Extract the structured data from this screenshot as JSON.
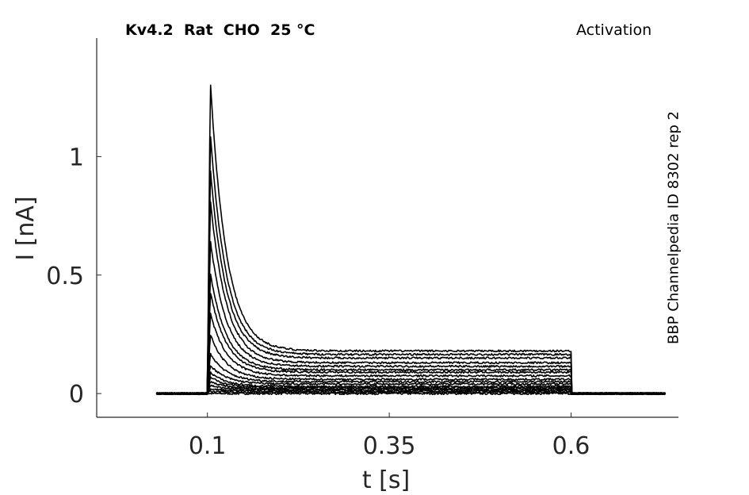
{
  "header": {
    "title": "Kv4.2  Rat  CHO  25 °C",
    "protocol": "Activation"
  },
  "side_label": "BBP Channelpedia ID 8302 rep 2",
  "chart_data": {
    "type": "line",
    "title": "Kv4.2  Rat  CHO  25 °C",
    "xlabel": "t [s]",
    "ylabel": "I [nA]",
    "xlim": [
      -0.0522,
      0.7476
    ],
    "ylim": [
      -0.1,
      1.5
    ],
    "xticks": [
      0.1,
      0.35,
      0.6
    ],
    "xtick_labels": [
      "0.1",
      "0.35",
      "0.6"
    ],
    "yticks": [
      0,
      0.5,
      1
    ],
    "ytick_labels": [
      "0",
      "0.5",
      "1"
    ],
    "grid": false,
    "line_color": "#000000",
    "step": {
      "onset_s": 0.1,
      "offset_s": 0.6,
      "record_start_s": 0.03,
      "record_end_s": 0.73
    },
    "series": [
      {
        "peak": 0.0,
        "steady": 0.0
      },
      {
        "peak": 0.01,
        "steady": 0.005
      },
      {
        "peak": 0.02,
        "steady": 0.01
      },
      {
        "peak": 0.035,
        "steady": 0.015
      },
      {
        "peak": 0.05,
        "steady": 0.02
      },
      {
        "peak": 0.07,
        "steady": 0.025
      },
      {
        "peak": 0.09,
        "steady": 0.03
      },
      {
        "peak": 0.12,
        "steady": 0.04
      },
      {
        "peak": 0.17,
        "steady": 0.05
      },
      {
        "peak": 0.25,
        "steady": 0.06
      },
      {
        "peak": 0.34,
        "steady": 0.075
      },
      {
        "peak": 0.43,
        "steady": 0.09
      },
      {
        "peak": 0.51,
        "steady": 0.1
      },
      {
        "peak": 0.65,
        "steady": 0.115
      },
      {
        "peak": 0.82,
        "steady": 0.13
      },
      {
        "peak": 0.95,
        "steady": 0.15
      },
      {
        "peak": 1.1,
        "steady": 0.165
      },
      {
        "peak": 1.32,
        "steady": 0.18
      }
    ]
  }
}
